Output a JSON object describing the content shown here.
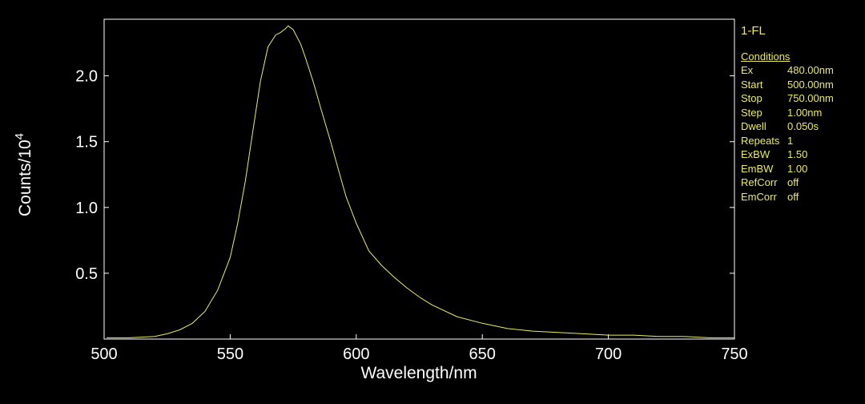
{
  "chart_data": {
    "type": "line",
    "title": "",
    "xlabel": "Wavelength/nm",
    "ylabel_base": "Counts/10",
    "ylabel_exp": "4",
    "xlim": [
      500,
      750
    ],
    "ylim": [
      0,
      2.43
    ],
    "xticks": [
      500,
      550,
      600,
      650,
      700,
      750
    ],
    "yticks": [
      0.5,
      1.0,
      1.5,
      2.0
    ],
    "ytick_labels": [
      "0.5",
      "1.0",
      "1.5",
      "2.0"
    ],
    "grid": false,
    "legend_position": "right",
    "series": [
      {
        "name": "1-FL",
        "color": "#ecec5c",
        "x": [
          501,
          510,
          520,
          525,
          530,
          535,
          540,
          545,
          550,
          553,
          556,
          559,
          562,
          565,
          568,
          570,
          572,
          573,
          575,
          578,
          580,
          583,
          586,
          590,
          593,
          596,
          600,
          605,
          610,
          615,
          620,
          625,
          630,
          640,
          650,
          660,
          670,
          680,
          690,
          700,
          710,
          720,
          730,
          740,
          750
        ],
        "y": [
          0.01,
          0.01,
          0.02,
          0.04,
          0.07,
          0.12,
          0.21,
          0.37,
          0.62,
          0.88,
          1.2,
          1.58,
          1.96,
          2.22,
          2.31,
          2.33,
          2.36,
          2.38,
          2.35,
          2.24,
          2.13,
          1.95,
          1.75,
          1.49,
          1.28,
          1.08,
          0.88,
          0.67,
          0.56,
          0.47,
          0.39,
          0.32,
          0.26,
          0.17,
          0.12,
          0.08,
          0.06,
          0.05,
          0.04,
          0.03,
          0.03,
          0.02,
          0.02,
          0.01,
          0.01
        ]
      }
    ]
  },
  "legend": {
    "series_label": "1-FL",
    "heading": "Conditions",
    "rows": [
      {
        "key": "Ex",
        "value": "480.00nm"
      },
      {
        "key": "Start",
        "value": "500.00nm"
      },
      {
        "key": "Stop",
        "value": "750.00nm"
      },
      {
        "key": "Step",
        "value": "1.00nm"
      },
      {
        "key": "Dwell",
        "value": "0.050s"
      },
      {
        "key": "Repeats",
        "value": "1"
      },
      {
        "key": "ExBW",
        "value": "1.50"
      },
      {
        "key": "EmBW",
        "value": "1.00"
      },
      {
        "key": "RefCorr",
        "value": "off"
      },
      {
        "key": "EmCorr",
        "value": "off"
      }
    ]
  },
  "colors": {
    "background": "#000000",
    "axis": "#ffffff",
    "trace": "#ecec5c"
  }
}
